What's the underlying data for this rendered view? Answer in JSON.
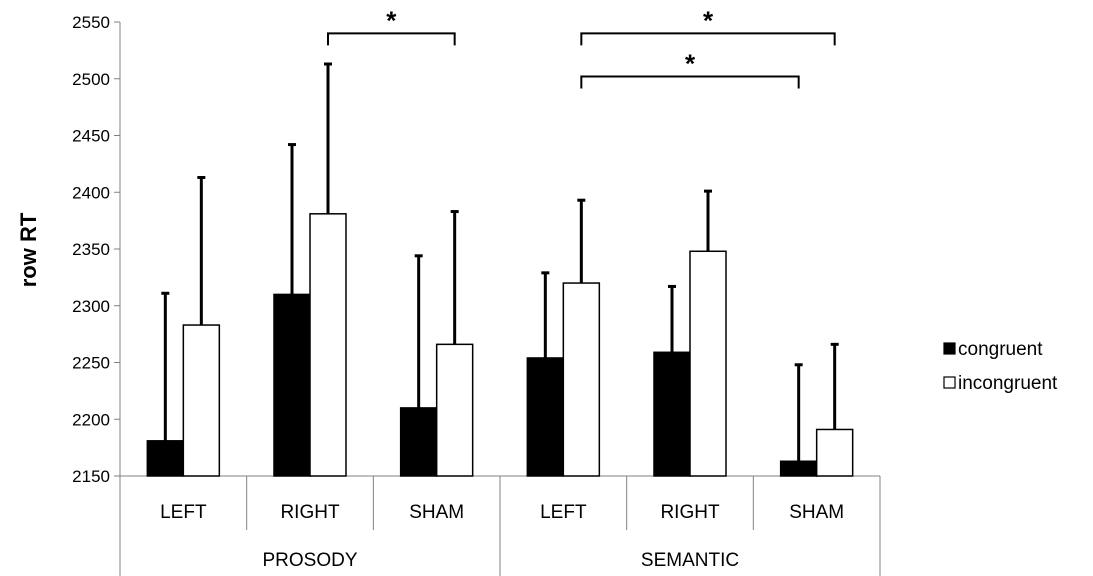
{
  "chart_data": {
    "type": "bar",
    "ylabel": "row RT",
    "ylim": [
      2150,
      2550
    ],
    "yticks": [
      2150,
      2200,
      2250,
      2300,
      2350,
      2400,
      2450,
      2500,
      2550
    ],
    "grid": false,
    "legend_position": "right",
    "groups": [
      {
        "label": "PROSODY",
        "categories": [
          "LEFT",
          "RIGHT",
          "SHAM"
        ]
      },
      {
        "label": "SEMANTIC",
        "categories": [
          "LEFT",
          "RIGHT",
          "SHAM"
        ]
      }
    ],
    "series": [
      {
        "name": "congruent",
        "color": "#000000",
        "values": [
          2181,
          2310,
          2210,
          2254,
          2259,
          2163
        ],
        "error_upper": [
          2311,
          2442,
          2344,
          2329,
          2317,
          2248
        ]
      },
      {
        "name": "incongruent",
        "color": "#ffffff",
        "values": [
          2283,
          2381,
          2266,
          2320,
          2348,
          2191
        ],
        "error_upper": [
          2413,
          2513,
          2383,
          2393,
          2401,
          2266
        ]
      }
    ],
    "significance": [
      {
        "label": "*",
        "from": "PROSODY RIGHT incongruent",
        "to": "PROSODY SHAM incongruent",
        "level": 2540
      },
      {
        "label": "*",
        "from": "SEMANTIC LEFT incongruent",
        "to": "SEMANTIC SHAM incongruent",
        "level": 2540
      },
      {
        "label": "*",
        "from": "SEMANTIC LEFT incongruent",
        "to": "SEMANTIC SHAM congruent",
        "level": 2502
      }
    ]
  }
}
